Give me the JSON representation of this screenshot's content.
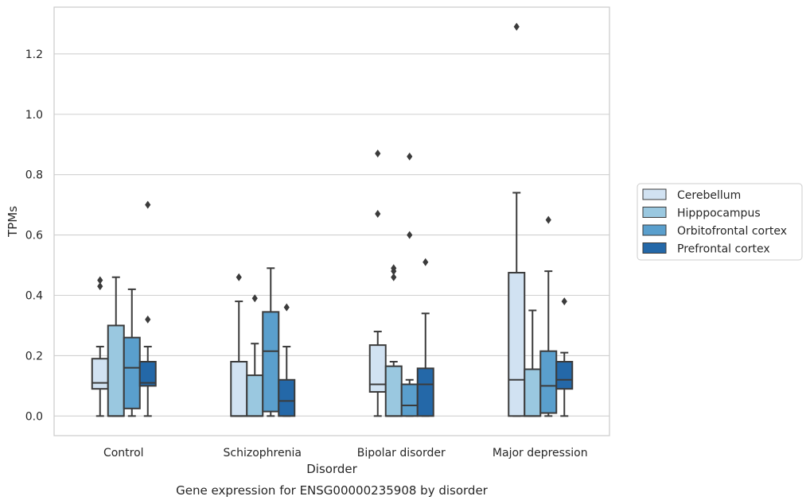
{
  "chart_data": {
    "type": "box",
    "caption": "Gene expression for ENSG00000235908 by disorder",
    "xlabel": "Disorder",
    "ylabel": "TPMs",
    "ylim": [
      -0.065,
      1.355
    ],
    "yticks": [
      0.0,
      0.2,
      0.4,
      0.6,
      0.8,
      1.0,
      1.2
    ],
    "grid": "horizontal",
    "legend_position": "right",
    "categories": [
      "Control",
      "Schizophrenia",
      "Bipolar disorder",
      "Major depression"
    ],
    "series": [
      {
        "name": "Cerebellum",
        "color": "#d1e2f2",
        "boxes": [
          {
            "whisker_low": 0.0,
            "q1": 0.09,
            "median": 0.11,
            "q3": 0.19,
            "whisker_high": 0.23,
            "outliers": [
              0.43,
              0.45
            ]
          },
          {
            "whisker_low": 0.0,
            "q1": 0.0,
            "median": 0.0,
            "q3": 0.18,
            "whisker_high": 0.38,
            "outliers": [
              0.46
            ]
          },
          {
            "whisker_low": 0.0,
            "q1": 0.08,
            "median": 0.105,
            "q3": 0.235,
            "whisker_high": 0.28,
            "outliers": [
              0.67,
              0.87
            ]
          },
          {
            "whisker_low": 0.0,
            "q1": 0.0,
            "median": 0.12,
            "q3": 0.475,
            "whisker_high": 0.74,
            "outliers": [
              1.29
            ]
          }
        ]
      },
      {
        "name": "Hipppocampus",
        "color": "#9ac8e0",
        "boxes": [
          {
            "whisker_low": 0.0,
            "q1": 0.0,
            "median": 0.0,
            "q3": 0.3,
            "whisker_high": 0.46,
            "outliers": []
          },
          {
            "whisker_low": 0.0,
            "q1": 0.0,
            "median": 0.0,
            "q3": 0.135,
            "whisker_high": 0.24,
            "outliers": [
              0.39
            ]
          },
          {
            "whisker_low": 0.0,
            "q1": 0.0,
            "median": 0.0,
            "q3": 0.165,
            "whisker_high": 0.18,
            "outliers": [
              0.46,
              0.48,
              0.49
            ]
          },
          {
            "whisker_low": 0.0,
            "q1": 0.0,
            "median": 0.0,
            "q3": 0.155,
            "whisker_high": 0.35,
            "outliers": []
          }
        ]
      },
      {
        "name": "Orbitofrontal cortex",
        "color": "#5a9fcd",
        "boxes": [
          {
            "whisker_low": 0.0,
            "q1": 0.025,
            "median": 0.16,
            "q3": 0.26,
            "whisker_high": 0.42,
            "outliers": []
          },
          {
            "whisker_low": 0.0,
            "q1": 0.015,
            "median": 0.215,
            "q3": 0.345,
            "whisker_high": 0.49,
            "outliers": []
          },
          {
            "whisker_low": 0.0,
            "q1": 0.0,
            "median": 0.035,
            "q3": 0.105,
            "whisker_high": 0.12,
            "outliers": [
              0.6,
              0.86
            ]
          },
          {
            "whisker_low": 0.0,
            "q1": 0.01,
            "median": 0.1,
            "q3": 0.215,
            "whisker_high": 0.48,
            "outliers": [
              0.65
            ]
          }
        ]
      },
      {
        "name": "Prefrontal cortex",
        "color": "#2468a8",
        "boxes": [
          {
            "whisker_low": 0.0,
            "q1": 0.1,
            "median": 0.11,
            "q3": 0.18,
            "whisker_high": 0.23,
            "outliers": [
              0.32,
              0.7
            ]
          },
          {
            "whisker_low": 0.0,
            "q1": 0.0,
            "median": 0.05,
            "q3": 0.12,
            "whisker_high": 0.23,
            "outliers": [
              0.36
            ]
          },
          {
            "whisker_low": 0.0,
            "q1": 0.0,
            "median": 0.105,
            "q3": 0.158,
            "whisker_high": 0.34,
            "outliers": [
              0.51
            ]
          },
          {
            "whisker_low": 0.0,
            "q1": 0.09,
            "median": 0.12,
            "q3": 0.18,
            "whisker_high": 0.21,
            "outliers": [
              0.38
            ]
          }
        ]
      }
    ]
  }
}
